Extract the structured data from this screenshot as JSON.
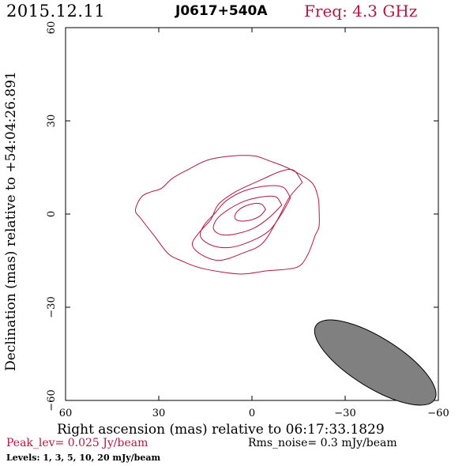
{
  "header": {
    "date": "2015.12.11",
    "source": "J0617+540A",
    "frequency": "Freq: 4.3 GHz"
  },
  "footer": {
    "peak": "Peak_lev=  0.025 Jy/beam",
    "rms": "Rms_noise=   0.3 mJy/beam",
    "levels": "Levels:   1,   3,   5,  10,  20 mJy/beam"
  },
  "colors": {
    "contour": "#b01840",
    "beam_fill": "#808080",
    "header_accent": "#b01840"
  },
  "chart_data": {
    "type": "contour",
    "xlabel": "Right ascension (mas) relative to 06:17:33.1829",
    "ylabel": "Declination (mas) relative to +54:04:26.891",
    "xlim": [
      60,
      -60
    ],
    "ylim": [
      -60,
      60
    ],
    "xticks": [
      60,
      30,
      0,
      -30,
      -60
    ],
    "yticks": [
      -60,
      -30,
      0,
      30,
      60
    ],
    "xtick_labels": [
      "60",
      "30",
      "0",
      "−30",
      "−60"
    ],
    "ytick_labels": [
      "−60",
      "−30",
      "0",
      "30",
      "60"
    ],
    "contour_levels_mJy": [
      1,
      3,
      5,
      10,
      20
    ],
    "contours": [
      {
        "level": 1,
        "points": [
          [
            -5.4,
            17.2
          ],
          [
            -12,
            14.6
          ],
          [
            -19,
            10.4
          ],
          [
            -21.2,
            5.7
          ],
          [
            -21.6,
            1.8
          ],
          [
            -21.6,
            -4
          ],
          [
            -20.4,
            -6.8
          ],
          [
            -17.8,
            -13.4
          ],
          [
            -14.2,
            -17.2
          ],
          [
            -4.5,
            -18.3
          ],
          [
            3.9,
            -19.3
          ],
          [
            16,
            -17.5
          ],
          [
            22.8,
            -15
          ],
          [
            27,
            -12.7
          ],
          [
            31.3,
            -7.2
          ],
          [
            35.8,
            -1.4
          ],
          [
            37.5,
            1.2
          ],
          [
            35.6,
            5.5
          ],
          [
            32.6,
            7.1
          ],
          [
            29.1,
            8.3
          ],
          [
            25.6,
            11.5
          ],
          [
            20.6,
            14.3
          ],
          [
            14.2,
            17.4
          ],
          [
            6.2,
            18.7
          ],
          [
            -0.7,
            18.7
          ],
          [
            -5.4,
            17.2
          ]
        ]
      },
      {
        "level": 3,
        "points": [
          [
            -16.2,
            10.2
          ],
          [
            -12,
            5.3
          ],
          [
            -8.1,
            -2
          ],
          [
            -3.3,
            -9.5
          ],
          [
            2.8,
            -12.5
          ],
          [
            10.3,
            -14.9
          ],
          [
            15.9,
            -13.3
          ],
          [
            19.2,
            -10
          ],
          [
            17.3,
            -6.3
          ],
          [
            13.2,
            -1.7
          ],
          [
            10.8,
            3.1
          ],
          [
            5.2,
            7.2
          ],
          [
            -3.8,
            11.4
          ],
          [
            -9.1,
            13.7
          ],
          [
            -13.4,
            14.1
          ],
          [
            -16.2,
            10.2
          ]
        ]
      },
      {
        "level": 5,
        "points": [
          [
            -12.4,
            5.2
          ],
          [
            -9.5,
            0
          ],
          [
            -5.5,
            -5.4
          ],
          [
            0,
            -8.6
          ],
          [
            6.7,
            -10.7
          ],
          [
            12.6,
            -10.2
          ],
          [
            16.5,
            -7.4
          ],
          [
            15.5,
            -3.7
          ],
          [
            11.7,
            0.5
          ],
          [
            8.1,
            4.4
          ],
          [
            2.1,
            7.6
          ],
          [
            -5.2,
            9.1
          ],
          [
            -10.1,
            8.6
          ],
          [
            -12.4,
            5.2
          ]
        ]
      },
      {
        "level": 10,
        "points": [
          [
            -9.6,
            2.9
          ],
          [
            -5.6,
            -1.1
          ],
          [
            -0.7,
            -4.5
          ],
          [
            5.3,
            -6.4
          ],
          [
            10,
            -6.6
          ],
          [
            12.4,
            -4.7
          ],
          [
            11.2,
            -1.5
          ],
          [
            7.8,
            1.3
          ],
          [
            2.8,
            4
          ],
          [
            -3,
            5.5
          ],
          [
            -7.6,
            5.6
          ],
          [
            -9.6,
            2.9
          ]
        ]
      },
      {
        "level": 20,
        "points": [
          [
            -4.4,
            1.5
          ],
          [
            -2.6,
            -0.6
          ],
          [
            0.7,
            -2
          ],
          [
            3.9,
            -2.2
          ],
          [
            5.5,
            -1.3
          ],
          [
            4.9,
            0.6
          ],
          [
            2.8,
            2.3
          ],
          [
            -0.8,
            3.4
          ],
          [
            -3.2,
            3.1
          ],
          [
            -4.4,
            1.5
          ]
        ]
      }
    ],
    "beam": {
      "center": [
        -39.7,
        -47.8
      ],
      "major_mas": 22.5,
      "minor_mas": 8,
      "pa_deg": 58
    }
  }
}
